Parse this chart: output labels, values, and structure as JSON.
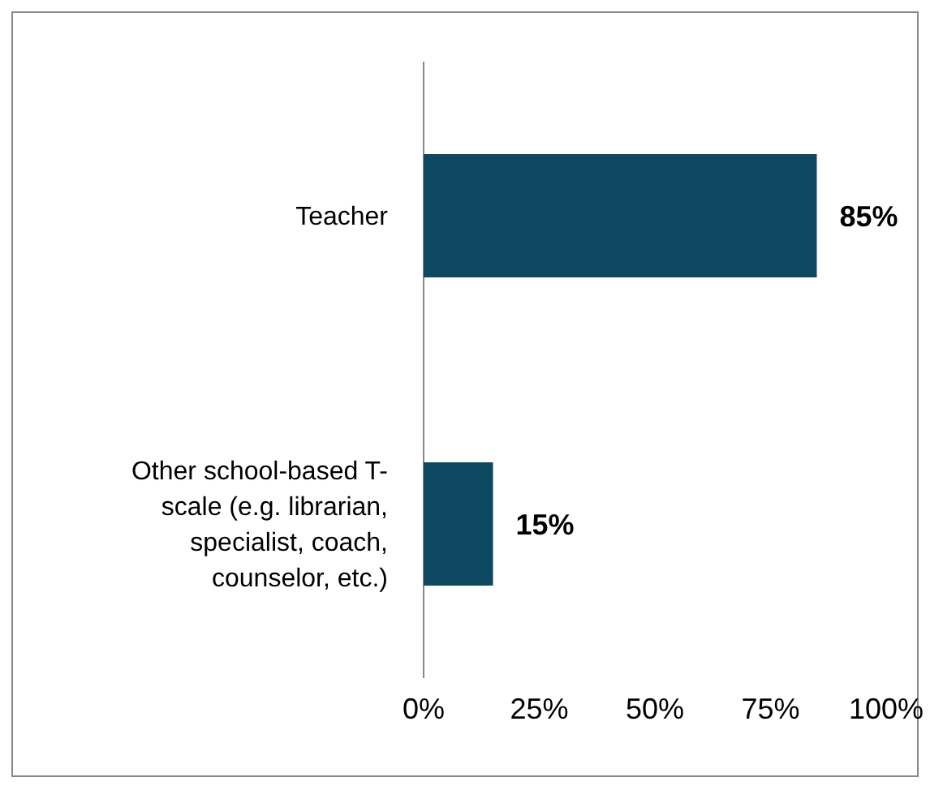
{
  "chart_data": {
    "type": "bar",
    "orientation": "horizontal",
    "categories": [
      "Teacher",
      "Other school-based T-scale (e.g. librarian, specialist, coach, counselor, etc.)"
    ],
    "values": [
      85,
      15
    ],
    "color": "#0d4760",
    "value_labels": [
      "85%",
      "15%"
    ],
    "xlim": [
      0,
      100
    ],
    "xticks": [
      {
        "value": 0,
        "label": "0%"
      },
      {
        "value": 25,
        "label": "25%"
      },
      {
        "value": 50,
        "label": "50%"
      },
      {
        "value": 75,
        "label": "75%"
      },
      {
        "value": 100,
        "label": "100%"
      }
    ],
    "grid": false
  }
}
